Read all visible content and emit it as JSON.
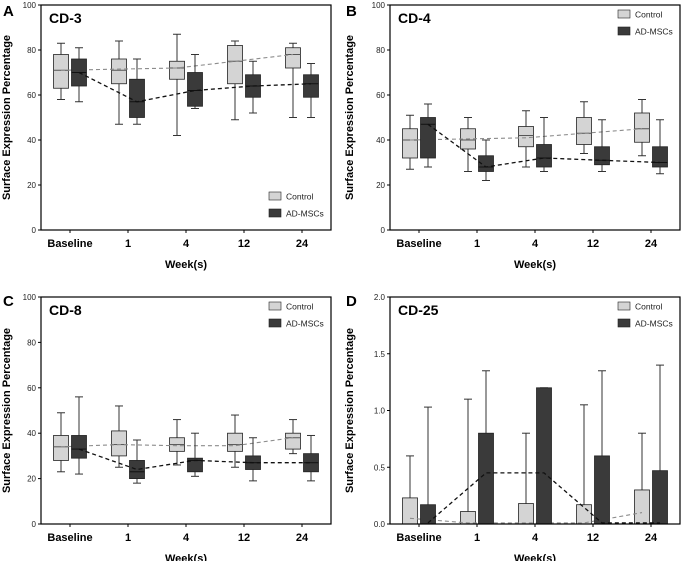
{
  "colors": {
    "control": "#d4d4d4",
    "ad_mscs": "#3a3a3a",
    "control_trend": "#8c8c8c",
    "ad_trend": "#111111",
    "whisker": "#333333"
  },
  "chart_data": [
    {
      "letter": "A",
      "title": "CD-3",
      "type": "box",
      "ylabel": "Surface Expression Percentage",
      "xlabel": "Week(s)",
      "categories": [
        "Baseline",
        "1",
        "4",
        "12",
        "24"
      ],
      "ylim": [
        0,
        100
      ],
      "yticks": [
        0,
        20,
        40,
        60,
        80,
        100
      ],
      "ytick_labels": [
        "0",
        "20",
        "40",
        "60",
        "80",
        "100"
      ],
      "legend": "bottom-right",
      "series": [
        {
          "name": "Control",
          "boxes": [
            {
              "min": 58,
              "q1": 63,
              "median": 71,
              "q3": 78,
              "max": 83
            },
            {
              "min": 47,
              "q1": 65,
              "median": 71,
              "q3": 76,
              "max": 84
            },
            {
              "min": 42,
              "q1": 67,
              "median": 72,
              "q3": 75,
              "max": 87
            },
            {
              "min": 49,
              "q1": 65,
              "median": 75,
              "q3": 82,
              "max": 84
            },
            {
              "min": 50,
              "q1": 72,
              "median": 78,
              "q3": 81,
              "max": 83
            }
          ],
          "trend": [
            71,
            71.5,
            72,
            75,
            78
          ]
        },
        {
          "name": "AD-MSCs",
          "boxes": [
            {
              "min": 57,
              "q1": 64,
              "median": 70,
              "q3": 76,
              "max": 81
            },
            {
              "min": 47,
              "q1": 50,
              "median": 57,
              "q3": 67,
              "max": 76
            },
            {
              "min": 54,
              "q1": 55,
              "median": 62,
              "q3": 70,
              "max": 78
            },
            {
              "min": 52,
              "q1": 59,
              "median": 64,
              "q3": 69,
              "max": 75
            },
            {
              "min": 50,
              "q1": 59,
              "median": 65,
              "q3": 69,
              "max": 74
            }
          ],
          "trend": [
            70,
            57,
            62,
            64,
            65
          ]
        }
      ]
    },
    {
      "letter": "B",
      "title": "CD-4",
      "type": "box",
      "ylabel": "Surface Expression Percentage",
      "xlabel": "Week(s)",
      "categories": [
        "Baseline",
        "1",
        "4",
        "12",
        "24"
      ],
      "ylim": [
        0,
        100
      ],
      "yticks": [
        0,
        20,
        40,
        60,
        80,
        100
      ],
      "ytick_labels": [
        "0",
        "20",
        "40",
        "60",
        "80",
        "100"
      ],
      "legend": "top-right",
      "series": [
        {
          "name": "Control",
          "boxes": [
            {
              "min": 27,
              "q1": 32,
              "median": 40,
              "q3": 45,
              "max": 51
            },
            {
              "min": 26,
              "q1": 36,
              "median": 40,
              "q3": 45,
              "max": 50
            },
            {
              "min": 28,
              "q1": 37,
              "median": 42,
              "q3": 46,
              "max": 53
            },
            {
              "min": 34,
              "q1": 38,
              "median": 43,
              "q3": 50,
              "max": 57
            },
            {
              "min": 33,
              "q1": 39,
              "median": 45,
              "q3": 52,
              "max": 58
            }
          ],
          "trend": [
            40,
            40.5,
            41,
            43,
            45
          ]
        },
        {
          "name": "AD-MSCs",
          "boxes": [
            {
              "min": 28,
              "q1": 32,
              "median": 47,
              "q3": 50,
              "max": 56
            },
            {
              "min": 22,
              "q1": 26,
              "median": 28,
              "q3": 33,
              "max": 40
            },
            {
              "min": 26,
              "q1": 28,
              "median": 32,
              "q3": 38,
              "max": 50
            },
            {
              "min": 26,
              "q1": 29,
              "median": 31,
              "q3": 37,
              "max": 49
            },
            {
              "min": 25,
              "q1": 28,
              "median": 30,
              "q3": 37,
              "max": 49
            }
          ],
          "trend": [
            47,
            28,
            32,
            31,
            30
          ]
        }
      ]
    },
    {
      "letter": "C",
      "title": "CD-8",
      "type": "box",
      "ylabel": "Surface Expression Percentage",
      "xlabel": "Week(s)",
      "categories": [
        "Baseline",
        "1",
        "4",
        "12",
        "24"
      ],
      "ylim": [
        0,
        100
      ],
      "yticks": [
        0,
        20,
        40,
        60,
        80,
        100
      ],
      "ytick_labels": [
        "0",
        "20",
        "40",
        "60",
        "80",
        "100"
      ],
      "legend": "top-right",
      "series": [
        {
          "name": "Control",
          "boxes": [
            {
              "min": 23,
              "q1": 28,
              "median": 34,
              "q3": 39,
              "max": 49
            },
            {
              "min": 25,
              "q1": 30,
              "median": 35,
              "q3": 41,
              "max": 52
            },
            {
              "min": 26,
              "q1": 32,
              "median": 35,
              "q3": 38,
              "max": 46
            },
            {
              "min": 25,
              "q1": 32,
              "median": 35,
              "q3": 40,
              "max": 48
            },
            {
              "min": 31,
              "q1": 33,
              "median": 38,
              "q3": 40,
              "max": 46
            }
          ],
          "trend": [
            34,
            35,
            34.5,
            34.5,
            38
          ]
        },
        {
          "name": "AD-MSCs",
          "boxes": [
            {
              "min": 22,
              "q1": 29,
              "median": 33,
              "q3": 39,
              "max": 56
            },
            {
              "min": 18,
              "q1": 20,
              "median": 23,
              "q3": 28,
              "max": 37
            },
            {
              "min": 21,
              "q1": 23,
              "median": 28,
              "q3": 29,
              "max": 40
            },
            {
              "min": 19,
              "q1": 24,
              "median": 27,
              "q3": 30,
              "max": 38
            },
            {
              "min": 19,
              "q1": 23,
              "median": 27,
              "q3": 31,
              "max": 39
            }
          ],
          "trend": [
            33,
            24,
            28,
            27,
            27
          ]
        }
      ]
    },
    {
      "letter": "D",
      "title": "CD-25",
      "type": "bar",
      "ylabel": "Surface Expression Percentage",
      "xlabel": "Week(s)",
      "categories": [
        "Baseline",
        "1",
        "4",
        "12",
        "24"
      ],
      "ylim": [
        0,
        2.0
      ],
      "yticks": [
        0,
        0.5,
        1.0,
        1.5,
        2.0
      ],
      "ytick_labels": [
        "0.0",
        "0.5",
        "1.0",
        "1.5",
        "2.0"
      ],
      "legend": "top-right",
      "series": [
        {
          "name": "Control",
          "values": [
            0.23,
            0.11,
            0.18,
            0.17,
            0.3
          ],
          "errors": [
            0.6,
            1.1,
            0.8,
            1.05,
            0.8
          ],
          "trend": [
            0.05,
            0.01,
            0.01,
            0.01,
            0.1
          ]
        },
        {
          "name": "AD-MSCs",
          "values": [
            0.17,
            0.8,
            1.2,
            0.6,
            0.47
          ],
          "errors": [
            1.03,
            1.35,
            1.2,
            1.35,
            1.4
          ],
          "trend": [
            0.01,
            0.45,
            0.45,
            0.01,
            0.01
          ]
        }
      ]
    }
  ]
}
